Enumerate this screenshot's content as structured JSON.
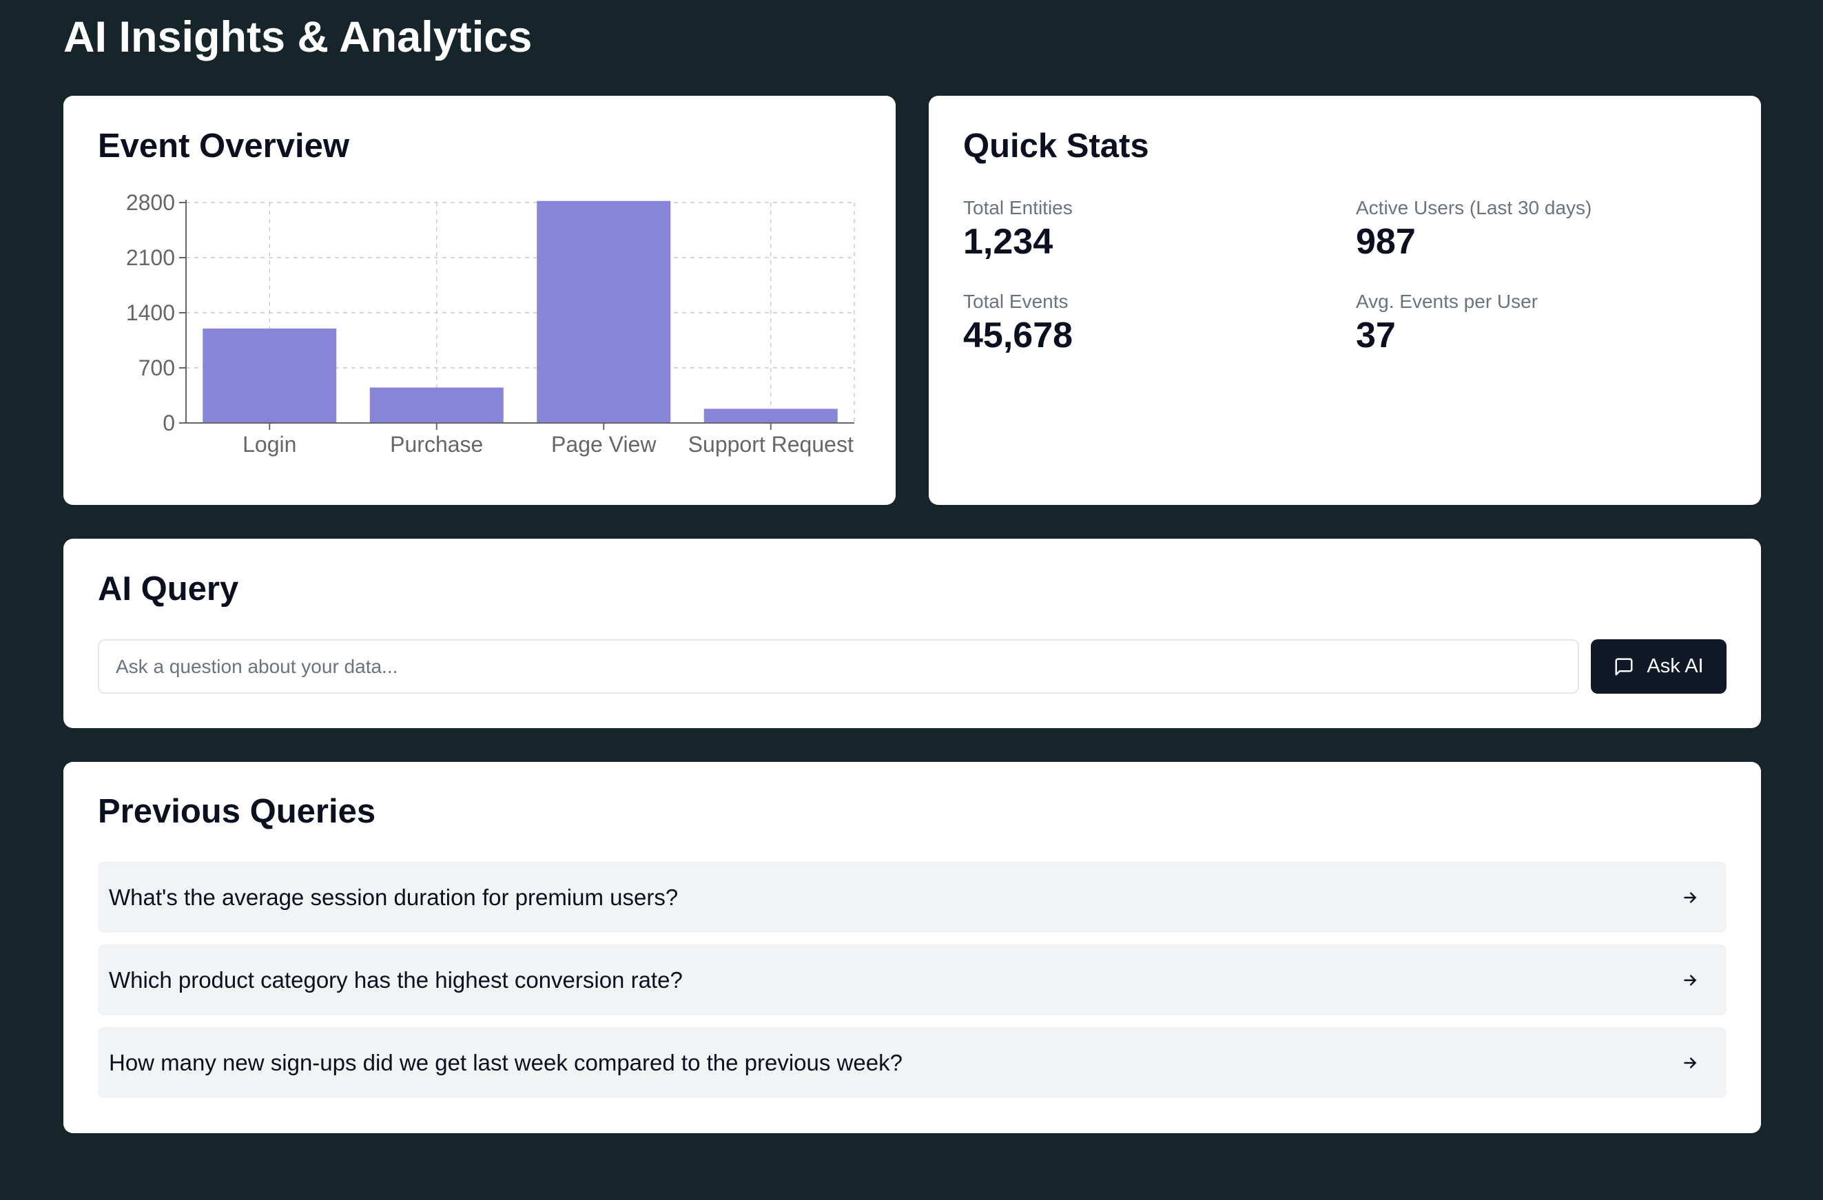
{
  "page": {
    "title": "AI Insights & Analytics"
  },
  "event_overview": {
    "title": "Event Overview"
  },
  "chart_data": {
    "type": "bar",
    "categories": [
      "Login",
      "Purchase",
      "Page View",
      "Support Request"
    ],
    "values": [
      1200,
      450,
      2820,
      180
    ],
    "title": "",
    "xlabel": "",
    "ylabel": "",
    "ylim": [
      0,
      2800
    ],
    "yticks": [
      0,
      700,
      1400,
      2100,
      2800
    ],
    "grid": true,
    "bar_color": "#8884d8"
  },
  "quick_stats": {
    "title": "Quick Stats",
    "items": [
      {
        "label": "Total Entities",
        "value": "1,234"
      },
      {
        "label": "Active Users (Last 30 days)",
        "value": "987"
      },
      {
        "label": "Total Events",
        "value": "45,678"
      },
      {
        "label": "Avg. Events per User",
        "value": "37"
      }
    ]
  },
  "ai_query": {
    "title": "AI Query",
    "placeholder": "Ask a question about your data...",
    "button_label": "Ask AI",
    "button_icon": "message-square-icon"
  },
  "previous_queries": {
    "title": "Previous Queries",
    "items": [
      {
        "text": "What's the average session duration for premium users?"
      },
      {
        "text": "Which product category has the highest conversion rate?"
      },
      {
        "text": "How many new sign-ups did we get last week compared to the previous week?"
      }
    ],
    "item_icon": "arrow-right-icon"
  },
  "colors": {
    "background": "#15252a",
    "card": "#ffffff",
    "primary_button": "#111827",
    "bar": "#8884d8",
    "list_item": "#f2f3f5"
  }
}
